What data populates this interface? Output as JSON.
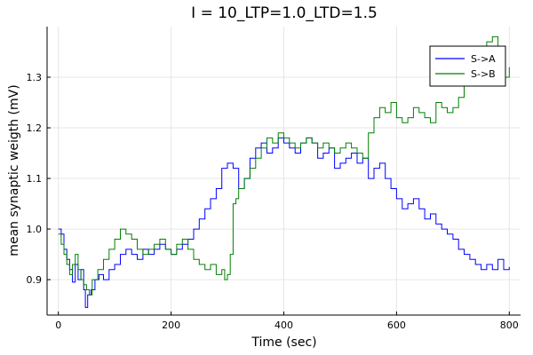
{
  "chart_data": {
    "type": "line",
    "title": "I = 10_LTP=1.0_LTD=1.5",
    "xlabel": "Time (sec)",
    "ylabel": "mean synaptic weigth (mV)",
    "xlim": [
      -20,
      820
    ],
    "ylim": [
      0.83,
      1.4
    ],
    "xticks": [
      0,
      200,
      400,
      600,
      800
    ],
    "yticks": [
      0.9,
      1.0,
      1.1,
      1.2,
      1.3
    ],
    "xtick_labels": [
      "0",
      "200",
      "400",
      "600",
      "800"
    ],
    "ytick_labels": [
      "0.9",
      "1.0",
      "1.1",
      "1.2",
      "1.3"
    ],
    "grid": true,
    "legend_position": "top-right",
    "series": [
      {
        "name": "S->A",
        "color": "#0000ff",
        "x": [
          0,
          5,
          10,
          15,
          20,
          25,
          30,
          35,
          40,
          45,
          48,
          52,
          58,
          65,
          72,
          80,
          90,
          100,
          110,
          120,
          130,
          140,
          150,
          160,
          170,
          180,
          190,
          200,
          210,
          220,
          230,
          240,
          250,
          260,
          270,
          280,
          290,
          300,
          310,
          320,
          330,
          340,
          350,
          360,
          370,
          380,
          390,
          400,
          410,
          420,
          430,
          440,
          450,
          460,
          470,
          480,
          490,
          500,
          510,
          520,
          530,
          540,
          550,
          560,
          570,
          580,
          590,
          600,
          610,
          620,
          630,
          640,
          650,
          660,
          670,
          680,
          690,
          700,
          710,
          720,
          730,
          740,
          750,
          760,
          770,
          780,
          790,
          800
        ],
        "y": [
          1.0,
          0.99,
          0.96,
          0.94,
          0.92,
          0.895,
          0.93,
          0.9,
          0.92,
          0.88,
          0.845,
          0.87,
          0.88,
          0.9,
          0.91,
          0.9,
          0.92,
          0.93,
          0.95,
          0.96,
          0.95,
          0.94,
          0.96,
          0.95,
          0.96,
          0.97,
          0.96,
          0.95,
          0.96,
          0.97,
          0.98,
          1.0,
          1.02,
          1.04,
          1.06,
          1.08,
          1.12,
          1.13,
          1.12,
          1.08,
          1.1,
          1.14,
          1.16,
          1.17,
          1.15,
          1.16,
          1.18,
          1.17,
          1.16,
          1.15,
          1.17,
          1.18,
          1.17,
          1.14,
          1.15,
          1.16,
          1.12,
          1.13,
          1.14,
          1.15,
          1.13,
          1.14,
          1.1,
          1.12,
          1.13,
          1.1,
          1.08,
          1.06,
          1.04,
          1.05,
          1.06,
          1.04,
          1.02,
          1.03,
          1.01,
          1.0,
          0.99,
          0.98,
          0.96,
          0.95,
          0.94,
          0.93,
          0.92,
          0.93,
          0.92,
          0.94,
          0.92,
          0.925
        ]
      },
      {
        "name": "S->B",
        "color": "#008000",
        "x": [
          0,
          5,
          10,
          15,
          20,
          25,
          30,
          35,
          40,
          45,
          50,
          55,
          60,
          70,
          80,
          90,
          100,
          110,
          120,
          130,
          140,
          150,
          160,
          170,
          180,
          190,
          200,
          210,
          220,
          230,
          240,
          250,
          260,
          270,
          280,
          290,
          295,
          300,
          305,
          310,
          315,
          320,
          330,
          340,
          350,
          360,
          370,
          380,
          390,
          400,
          410,
          420,
          430,
          440,
          450,
          460,
          470,
          480,
          490,
          500,
          510,
          520,
          530,
          540,
          550,
          560,
          570,
          580,
          590,
          600,
          610,
          620,
          630,
          640,
          650,
          660,
          670,
          680,
          690,
          700,
          710,
          720,
          730,
          740,
          750,
          760,
          770,
          780,
          790,
          800
        ],
        "y": [
          0.99,
          0.97,
          0.95,
          0.93,
          0.91,
          0.93,
          0.95,
          0.92,
          0.9,
          0.89,
          0.88,
          0.87,
          0.9,
          0.92,
          0.94,
          0.96,
          0.98,
          1.0,
          0.99,
          0.98,
          0.96,
          0.95,
          0.96,
          0.97,
          0.98,
          0.96,
          0.95,
          0.97,
          0.98,
          0.96,
          0.94,
          0.93,
          0.92,
          0.93,
          0.91,
          0.92,
          0.9,
          0.91,
          0.95,
          1.05,
          1.06,
          1.08,
          1.1,
          1.12,
          1.14,
          1.16,
          1.18,
          1.17,
          1.19,
          1.18,
          1.17,
          1.16,
          1.17,
          1.18,
          1.17,
          1.16,
          1.17,
          1.16,
          1.15,
          1.16,
          1.17,
          1.16,
          1.15,
          1.14,
          1.19,
          1.22,
          1.24,
          1.23,
          1.25,
          1.22,
          1.21,
          1.22,
          1.24,
          1.23,
          1.22,
          1.21,
          1.25,
          1.24,
          1.23,
          1.24,
          1.26,
          1.29,
          1.31,
          1.32,
          1.34,
          1.37,
          1.38,
          1.32,
          1.3,
          1.32
        ]
      }
    ]
  }
}
